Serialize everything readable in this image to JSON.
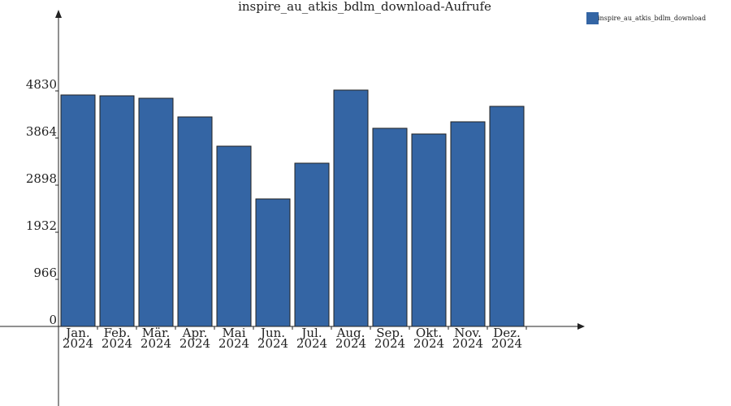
{
  "chart_data": {
    "type": "bar",
    "title": "inspire_au_atkis_bdlm_download-Aufrufe",
    "categories": [
      "Jan.\n2024",
      "Feb.\n2024",
      "Mär.\n2024",
      "Apr.\n2024",
      "Mai\n2024",
      "Jun.\n2024",
      "Jul.\n2024",
      "Aug.\n2024",
      "Sep.\n2024",
      "Okt.\n2024",
      "Nov.\n2024",
      "Dez.\n2024"
    ],
    "series": [
      {
        "name": "inspire_au_atkis_bdlm_download",
        "color": "#3465a4",
        "values": [
          4747,
          4730,
          4680,
          4297,
          3697,
          2615,
          3348,
          4847,
          4064,
          3947,
          4197,
          4514
        ]
      }
    ],
    "ylim": [
      0,
      6445
    ],
    "yticks": [
      0,
      966,
      1932,
      2898,
      3864,
      4830
    ],
    "legend": "upper-right"
  }
}
